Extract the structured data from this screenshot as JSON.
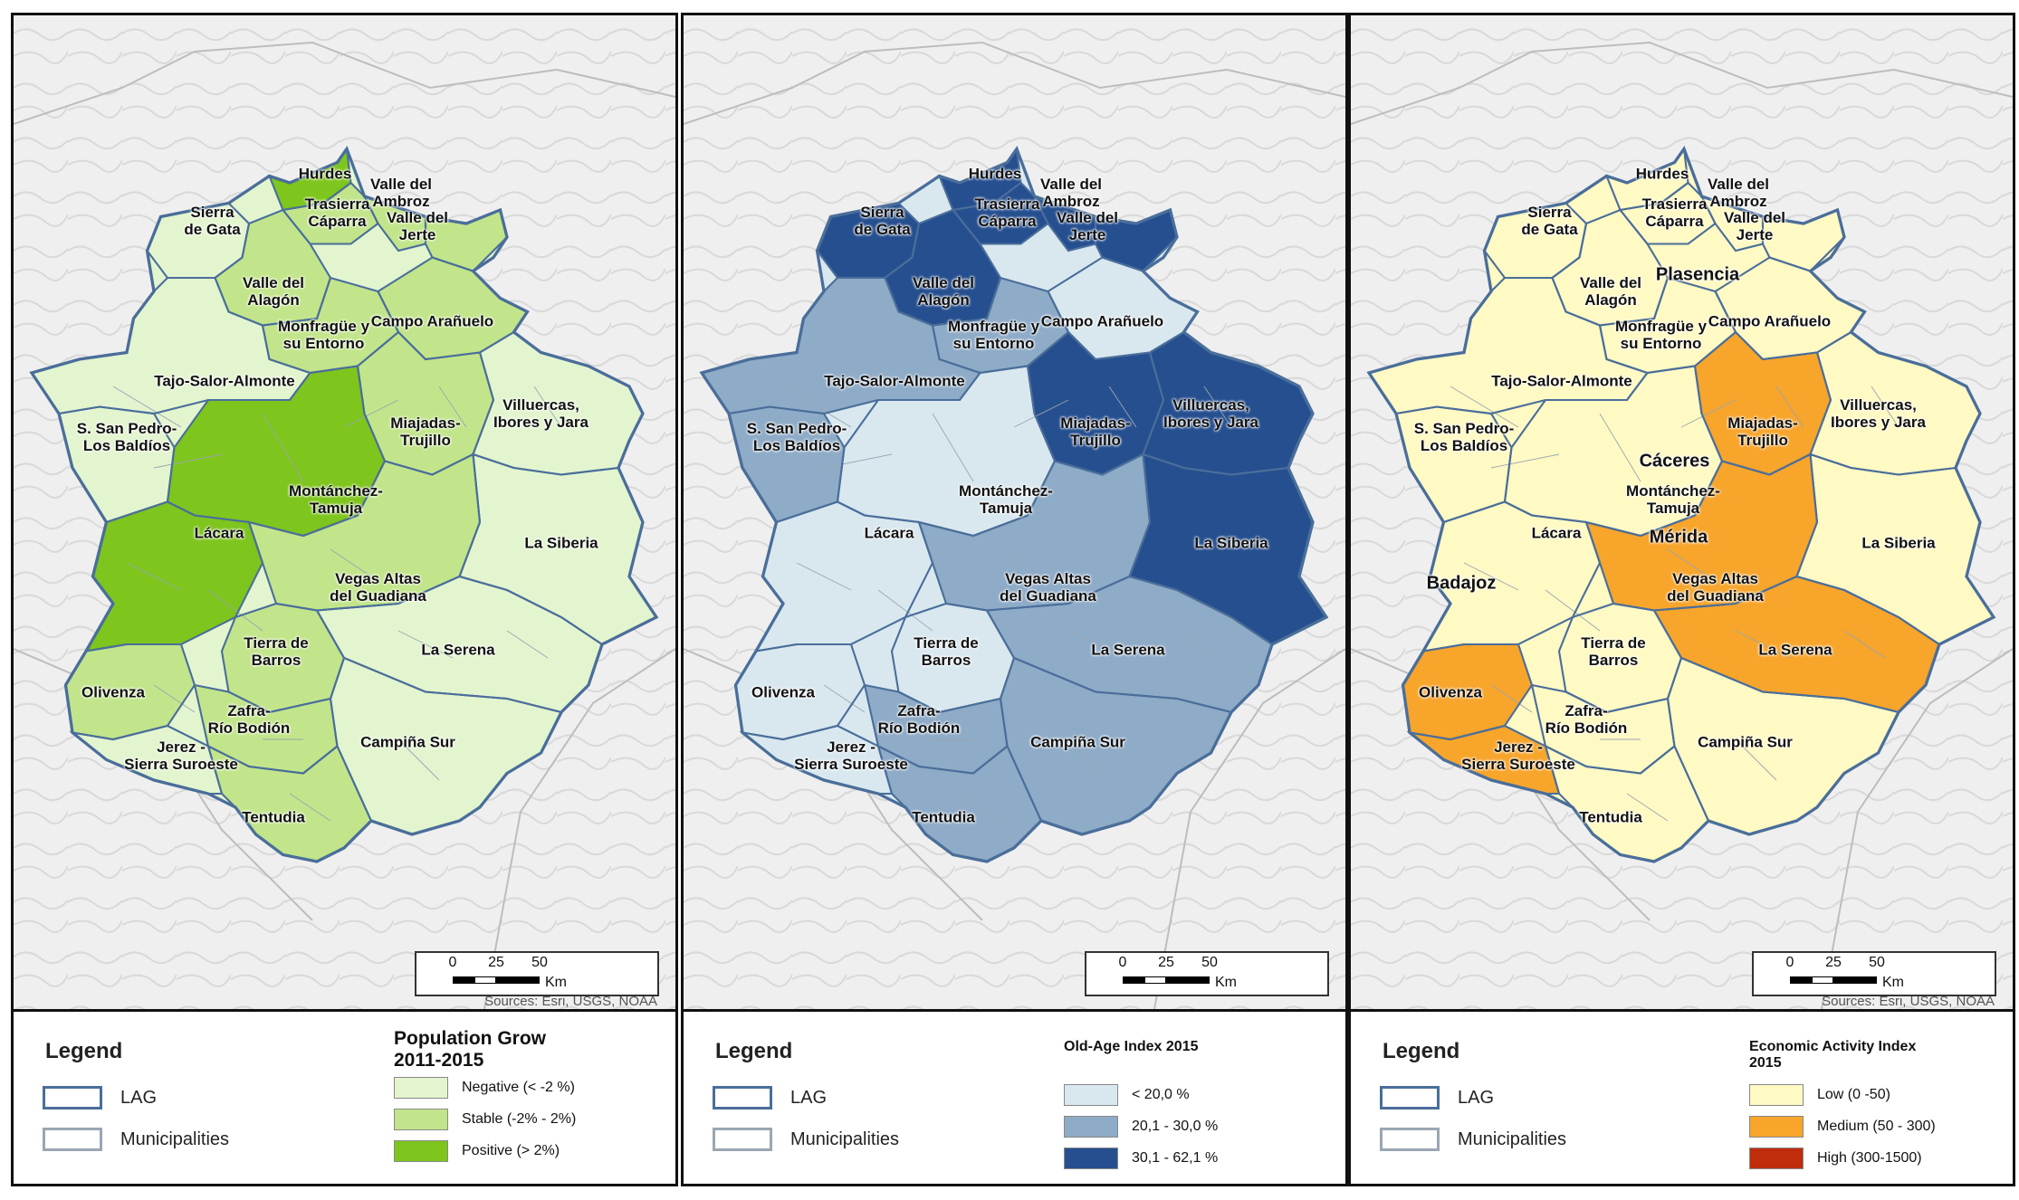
{
  "legend": {
    "title": "Legend",
    "lag_label": "LAG",
    "municipalities_label": "Municipalities"
  },
  "scale": {
    "ticks": [
      "0",
      "25",
      "50"
    ],
    "unit": "Km"
  },
  "source_text": "Sources: Esri, USGS, NOAA",
  "lag_names": {
    "hurdes": "Hurdes",
    "valle_ambroz": "Valle del\nAmbroz",
    "trasierra": "Trasierra\nCáparra",
    "valle_jerte": "Valle del\nJerte",
    "sierra_gata": "Sierra\nde Gata",
    "valle_alagon": "Valle del\nAlagón",
    "plasencia": "Plasencia",
    "monfrague": "Monfragüe y\nsu Entorno",
    "campo_aranuelo": "Campo Arañuelo",
    "tajo_salor": "Tajo-Salor-Almonte",
    "san_pedro": "S. San Pedro-\nLos Baldíos",
    "miajadas": "Miajadas-\nTrujillo",
    "villuercas": "Villuercas,\nIbores y Jara",
    "caceres": "Cáceres",
    "montanchez": "Montánchez-\nTamuja",
    "lacara": "Lácara",
    "merida": "Mérida",
    "vegas_altas": "Vegas Altas\ndel Guadiana",
    "la_siberia": "La Siberia",
    "badajoz": "Badajoz",
    "tierra_barros": "Tierra de\nBarros",
    "la_serena": "La Serena",
    "olivenza": "Olivenza",
    "zafra": "Zafra-\nRío Bodión",
    "jerez": "Jerez -\nSierra Suroeste",
    "campina_sur": "Campiña Sur",
    "tentudia": "Tentudia"
  },
  "panels": [
    {
      "variable_title": "Population Grow\n2011-2015",
      "colors": {
        "lag_border": "#4a6e9a",
        "muni_border": "#9aa6b2"
      },
      "classes": [
        {
          "label": "Negative (< -2 %)",
          "color": "#e3f5cf"
        },
        {
          "label": "Stable (-2% -  2%)",
          "color": "#c2e58b"
        },
        {
          "label": "Positive (> 2%)",
          "color": "#7ec51d"
        }
      ],
      "lag_classes": {
        "hurdes": 2,
        "valle_ambroz": 1,
        "trasierra": 1,
        "valle_jerte": 1,
        "sierra_gata": 0,
        "valle_alagon": 1,
        "monfrague": 1,
        "campo_aranuelo": 1,
        "tajo_salor": 0,
        "san_pedro": 0,
        "miajadas": 1,
        "villuercas": 0,
        "montanchez": 2,
        "lacara": 2,
        "vegas_altas": 1,
        "la_siberia": 0,
        "tierra_barros": 1,
        "la_serena": 0,
        "olivenza": 1,
        "zafra": 1,
        "jerez": 0,
        "campina_sur": 0,
        "tentudia": 1
      }
    },
    {
      "variable_title": "Old-Age Index 2015",
      "colors": {
        "lag_border": "#4a6e9a",
        "muni_border": "#9aa6b2"
      },
      "classes": [
        {
          "label": "< 20,0 %",
          "color": "#d9e8ef"
        },
        {
          "label": "20,1 - 30,0 %",
          "color": "#8eabc7"
        },
        {
          "label": "30,1 - 62,1 %",
          "color": "#264f8f"
        }
      ],
      "lag_classes": {
        "hurdes": 2,
        "valle_ambroz": 2,
        "trasierra": 2,
        "valle_jerte": 2,
        "sierra_gata": 2,
        "valle_alagon": 2,
        "monfrague": 1,
        "campo_aranuelo": 0,
        "tajo_salor": 1,
        "san_pedro": 1,
        "miajadas": 2,
        "villuercas": 2,
        "montanchez": 0,
        "lacara": 0,
        "vegas_altas": 1,
        "la_siberia": 2,
        "tierra_barros": 0,
        "la_serena": 1,
        "olivenza": 0,
        "zafra": 1,
        "jerez": 0,
        "campina_sur": 1,
        "tentudia": 1
      }
    },
    {
      "variable_title": "Economic Activity Index\n2015",
      "colors": {
        "lag_border": "#4a6e9a",
        "muni_border": "#9aa6b2"
      },
      "classes": [
        {
          "label": "Low (0 -50)",
          "color": "#fff9c4"
        },
        {
          "label": "Medium (50 - 300)",
          "color": "#f7a52b"
        },
        {
          "label": "High (300-1500)",
          "color": "#c02d0c"
        }
      ],
      "lag_classes": {
        "hurdes": 0,
        "valle_ambroz": 0,
        "trasierra": 0,
        "valle_jerte": 0,
        "sierra_gata": 0,
        "valle_alagon": 0,
        "monfrague": 0,
        "campo_aranuelo": 0,
        "tajo_salor": 0,
        "san_pedro": 0,
        "miajadas": 1,
        "villuercas": 0,
        "montanchez": 0,
        "lacara": 0,
        "vegas_altas": 1,
        "la_siberia": 0,
        "tierra_barros": 0,
        "la_serena": 1,
        "olivenza": 1,
        "zafra": 0,
        "jerez": 1,
        "campina_sur": 0,
        "tentudia": 0
      }
    }
  ]
}
